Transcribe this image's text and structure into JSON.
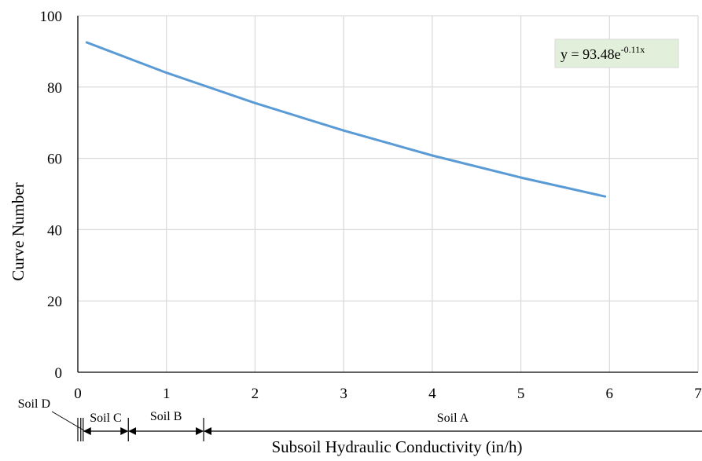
{
  "chart_data": {
    "type": "line",
    "xlabel": "Subsoil Hydraulic Conductivity (in/h)",
    "ylabel": "Curve Number",
    "xlim": [
      0,
      7
    ],
    "ylim": [
      0,
      100
    ],
    "x_ticks": [
      "0",
      "1",
      "2",
      "3",
      "4",
      "5",
      "6",
      "7"
    ],
    "y_ticks": [
      "0",
      "20",
      "40",
      "60",
      "80",
      "100"
    ],
    "grid": true,
    "legend": "none",
    "series": [
      {
        "color": "#5B9BD5",
        "x": [
          0.1,
          1,
          2,
          3,
          4,
          5,
          5.95
        ],
        "y": [
          92.5,
          84.0,
          75.5,
          67.8,
          60.8,
          54.6,
          49.3
        ]
      }
    ],
    "equation": {
      "prefix": "y = 93.48e",
      "exponent": "-0.11x",
      "background": "#E2EFDA"
    },
    "soil_ranges": [
      {
        "label": "Soil D",
        "x_start": 0,
        "x_end": 0.06
      },
      {
        "label": "Soil C",
        "x_start": 0.06,
        "x_end": 0.57
      },
      {
        "label": "Soil B",
        "x_start": 0.57,
        "x_end": 1.42
      },
      {
        "label": "Soil A",
        "x_start": 1.42,
        "x_end": 7
      }
    ]
  }
}
